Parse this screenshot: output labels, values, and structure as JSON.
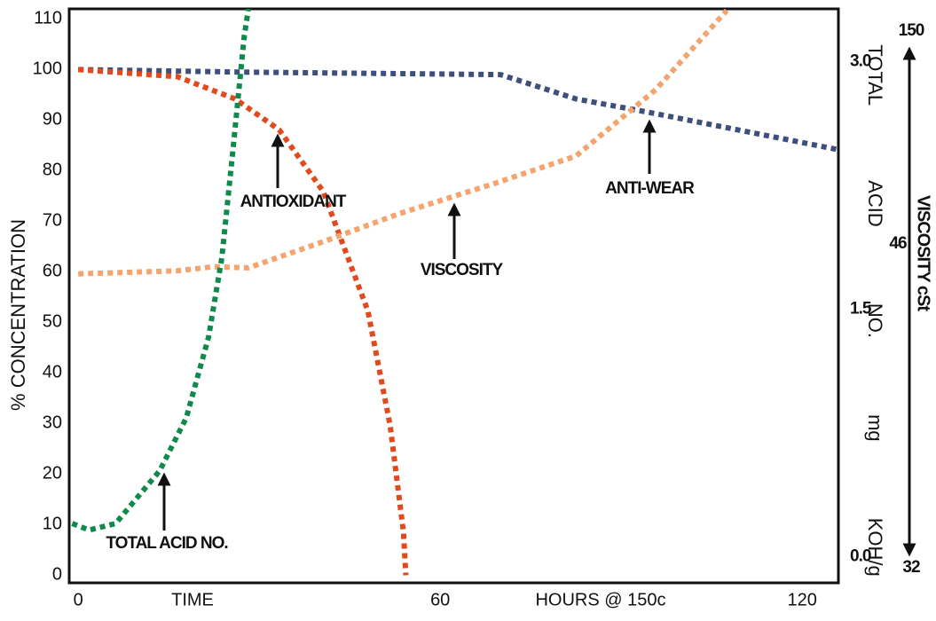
{
  "chart_data": {
    "type": "line",
    "y_label": "% CONCENTRATION",
    "y2_label": "TOTAL ACID NO. mg KOH/g",
    "x_label_parts": [
      "TIME",
      "HOURS @ 150c"
    ],
    "viscosity_label": "VISCOSITY cSt",
    "viscosity_labels": [
      "150",
      "46",
      "32"
    ],
    "xlim": [
      -1.5,
      126
    ],
    "xticks": [
      0,
      60,
      120
    ],
    "ylim": [
      -1.5,
      112
    ],
    "yticks": [
      0,
      10,
      20,
      30,
      40,
      50,
      60,
      70,
      80,
      90,
      100,
      110
    ],
    "y2lim": [
      -0.16,
      3.32
    ],
    "y2ticks": [
      {
        "value": 0,
        "label": "0.0"
      },
      1.5,
      {
        "value": 3,
        "label": "3.0"
      }
    ],
    "series": [
      {
        "name": "ANTI-WEAR",
        "color": "#3f4f7c",
        "x": [
          0,
          26.9,
          70,
          82.5,
          94.3,
          125.8
        ],
        "values": [
          100,
          99.5,
          99,
          94.2,
          91.6,
          84.2
        ]
      },
      {
        "name": "ANTIOXIDANT",
        "color": "#e2491c",
        "x": [
          0,
          16.4,
          26,
          33.3,
          40.6,
          43.6,
          48,
          51.7,
          53.9,
          54.3
        ],
        "values": [
          100,
          98.6,
          94.2,
          88.1,
          75.9,
          66.3,
          52.3,
          29.6,
          8.6,
          0
        ]
      },
      {
        "name": "VISCOSITY",
        "color": "#f4a46c",
        "x": [
          0,
          16.4,
          22.3,
          28.2,
          41.4,
          53.2,
          69.3,
          82.5,
          95.7,
          107.5
        ],
        "values": [
          59.6,
          60.2,
          61,
          60.8,
          66.3,
          71.5,
          77.6,
          82.9,
          96,
          111.7
        ]
      },
      {
        "name": "TOTAL ACID NO.",
        "color": "#108a4c",
        "axis": "y2",
        "x": [
          -1,
          1.8,
          6.2,
          13.5,
          17.9,
          21.6,
          23.8,
          25.6,
          27.5,
          28.2
        ],
        "values": [
          0.2,
          0.16,
          0.2,
          0.52,
          0.84,
          1.33,
          1.81,
          2.45,
          3.15,
          3.32
        ]
      }
    ]
  }
}
